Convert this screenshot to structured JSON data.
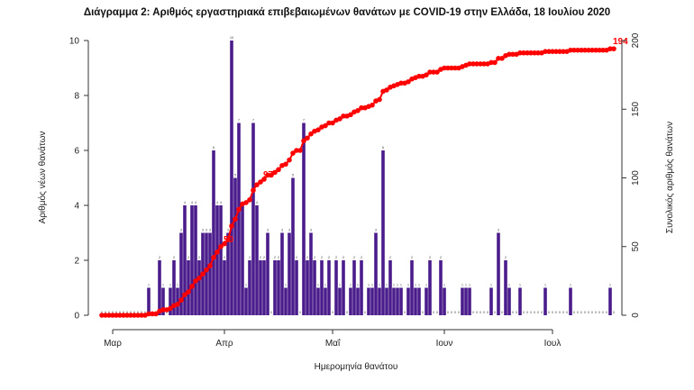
{
  "chart_data": {
    "type": "bar+line",
    "title": "Διάγραμμα 2: Αριθμός εργαστηριακά επιβεβαιωμένων θανάτων με COVID-19 στην Ελλάδα, 18 Ιουλίου 2020",
    "xlabel": "Ημερομηνία θανάτου",
    "ylabel": "Αριθμός νέων θανάτων",
    "y2label": "Συνολικός αριθμός θανάτων",
    "ylim": [
      0,
      10
    ],
    "y2lim": [
      0,
      200
    ],
    "yticks": [
      0,
      2,
      4,
      6,
      8,
      10
    ],
    "y2ticks": [
      0,
      50,
      100,
      150,
      200
    ],
    "xticks": [
      {
        "index": 3,
        "label": "Μαρ"
      },
      {
        "index": 34,
        "label": "Απρ"
      },
      {
        "index": 64,
        "label": "Μαΐ"
      },
      {
        "index": 95,
        "label": "Ιουν"
      },
      {
        "index": 125,
        "label": "Ιουλ"
      }
    ],
    "grid": false,
    "bar_color": "#4b1d8c",
    "line_color": "#ff0000",
    "daily_deaths": [
      0,
      0,
      0,
      0,
      0,
      0,
      0,
      0,
      0,
      0,
      0,
      0,
      0,
      1,
      0,
      0,
      2,
      1,
      0,
      1,
      2,
      1,
      3,
      4,
      2,
      4,
      4,
      2,
      3,
      3,
      3,
      6,
      4,
      4,
      2,
      3,
      10,
      5,
      7,
      4,
      1,
      2,
      7,
      4,
      2,
      2,
      3,
      0,
      2,
      2,
      3,
      1,
      3,
      5,
      2,
      0,
      7,
      2,
      3,
      2,
      1,
      2,
      1,
      2,
      0,
      2,
      1,
      2,
      0,
      1,
      2,
      1,
      2,
      0,
      1,
      1,
      3,
      1,
      6,
      1,
      2,
      1,
      1,
      1,
      0,
      1,
      2,
      1,
      1,
      0,
      1,
      2,
      0,
      0,
      2,
      1,
      0,
      0,
      0,
      0,
      1,
      1,
      1,
      0,
      0,
      0,
      0,
      0,
      1,
      0,
      3,
      0,
      2,
      1,
      0,
      0,
      1,
      0,
      0,
      0,
      0,
      0,
      0,
      1,
      0,
      0,
      0,
      0,
      0,
      0,
      1,
      0,
      0,
      0,
      0,
      0,
      0,
      0,
      0,
      0,
      0,
      1,
      0
    ],
    "annotations": [
      {
        "cumulative": 50,
        "label": "50"
      },
      {
        "cumulative": 97,
        "label": "97"
      },
      {
        "cumulative": 194,
        "label": "194"
      }
    ]
  }
}
